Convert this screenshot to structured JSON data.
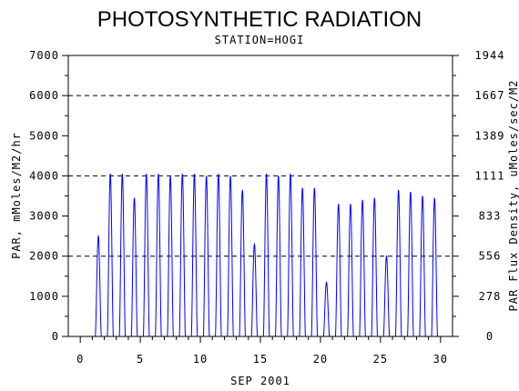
{
  "chart_data": {
    "type": "line",
    "title": "PHOTOSYNTHETIC RADIATION",
    "subtitle": "STATION=HOGI",
    "xlabel": "SEP 2001",
    "ylabel": "PAR, mMoles/M2/hr",
    "y2label": "PAR Flux Density, uMoles/sec/M2",
    "xlim": [
      -1,
      31
    ],
    "ylim": [
      0,
      7000
    ],
    "y2lim": [
      0,
      1944
    ],
    "x_ticks": [
      "0",
      "5",
      "10",
      "15",
      "20",
      "25",
      "30"
    ],
    "y_ticks": [
      "0",
      "1000",
      "2000",
      "3000",
      "4000",
      "5000",
      "6000",
      "7000"
    ],
    "y2_ticks": [
      "0",
      "278",
      "556",
      "833",
      "1111",
      "1389",
      "1667",
      "1944"
    ],
    "reference_lines": [
      2000,
      4000,
      6000
    ],
    "line_color": "#0000ff",
    "series": [
      {
        "daily_peaks": [
          {
            "day": 1,
            "peak": 2500
          },
          {
            "day": 2,
            "peak": 4050
          },
          {
            "day": 3,
            "peak": 4050
          },
          {
            "day": 4,
            "peak": 3450
          },
          {
            "day": 5,
            "peak": 4050
          },
          {
            "day": 6,
            "peak": 4050
          },
          {
            "day": 7,
            "peak": 4000
          },
          {
            "day": 8,
            "peak": 4050
          },
          {
            "day": 9,
            "peak": 4050
          },
          {
            "day": 10,
            "peak": 4000
          },
          {
            "day": 11,
            "peak": 4050
          },
          {
            "day": 12,
            "peak": 4000
          },
          {
            "day": 13,
            "peak": 3650
          },
          {
            "day": 14,
            "peak": 2300
          },
          {
            "day": 15,
            "peak": 4050
          },
          {
            "day": 16,
            "peak": 4000
          },
          {
            "day": 17,
            "peak": 4050
          },
          {
            "day": 18,
            "peak": 3700
          },
          {
            "day": 19,
            "peak": 3700
          },
          {
            "day": 20,
            "peak": 1350
          },
          {
            "day": 21,
            "peak": 3300
          },
          {
            "day": 22,
            "peak": 3300
          },
          {
            "day": 23,
            "peak": 3400
          },
          {
            "day": 24,
            "peak": 3450
          },
          {
            "day": 25,
            "peak": 2000
          },
          {
            "day": 26,
            "peak": 3650
          },
          {
            "day": 27,
            "peak": 3600
          },
          {
            "day": 28,
            "peak": 3500
          },
          {
            "day": 29,
            "peak": 3450
          }
        ]
      }
    ]
  }
}
